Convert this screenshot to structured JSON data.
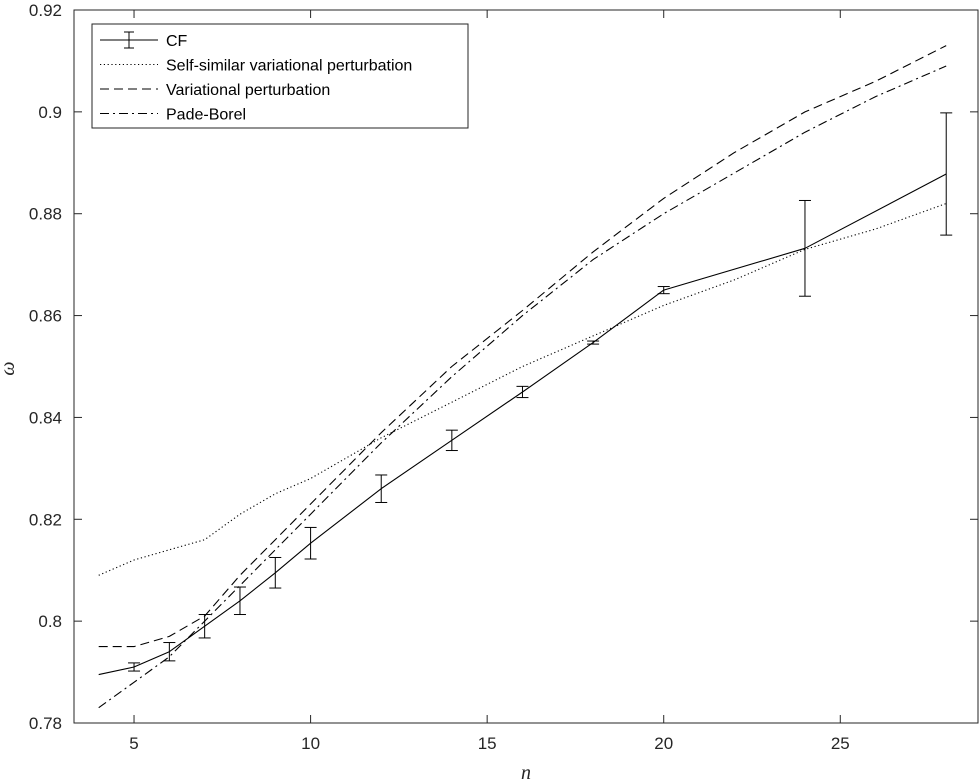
{
  "chart_data": {
    "type": "line",
    "xlabel": "n",
    "ylabel": "ω",
    "xlim": [
      3.3,
      28.9
    ],
    "ylim": [
      0.78,
      0.92
    ],
    "xticks": [
      5,
      10,
      15,
      20,
      25
    ],
    "yticks": [
      0.78,
      0.8,
      0.82,
      0.84,
      0.86,
      0.88,
      0.9,
      0.92
    ],
    "ytick_labels": [
      "0.78",
      "0.8",
      "0.82",
      "0.84",
      "0.86",
      "0.88",
      "0.9",
      "0.92"
    ],
    "grid": false,
    "legend_position": "top-left",
    "series": [
      {
        "name": "CF",
        "style": "solid",
        "color": "#000000",
        "x": [
          4,
          5,
          6,
          7,
          8,
          9,
          10,
          12,
          14,
          16,
          18,
          20,
          24,
          28
        ],
        "y": [
          0.7895,
          0.791,
          0.794,
          0.799,
          0.804,
          0.8095,
          0.8153,
          0.826,
          0.8355,
          0.845,
          0.8547,
          0.865,
          0.8732,
          0.8878
        ],
        "err": [
          0.0,
          0.0008,
          0.0018,
          0.0023,
          0.0027,
          0.003,
          0.0031,
          0.0027,
          0.002,
          0.0011,
          0.0003,
          0.0007,
          0.0094,
          0.012
        ]
      },
      {
        "name": "Self-similar variational perturbation",
        "style": "dotted",
        "color": "#000000",
        "x": [
          4,
          5,
          6,
          7,
          8,
          9,
          10,
          11,
          12,
          14,
          16,
          18,
          20,
          22,
          24,
          26,
          28
        ],
        "y": [
          0.809,
          0.812,
          0.814,
          0.816,
          0.821,
          0.825,
          0.828,
          0.832,
          0.836,
          0.843,
          0.85,
          0.856,
          0.862,
          0.867,
          0.873,
          0.877,
          0.882
        ]
      },
      {
        "name": "Variational perturbation",
        "style": "dashed",
        "color": "#000000",
        "x": [
          4,
          5,
          6,
          7,
          8,
          9,
          10,
          11,
          12,
          14,
          16,
          18,
          20,
          22,
          24,
          26,
          28
        ],
        "y": [
          0.795,
          0.795,
          0.797,
          0.801,
          0.809,
          0.816,
          0.823,
          0.83,
          0.837,
          0.85,
          0.861,
          0.8725,
          0.883,
          0.892,
          0.9,
          0.906,
          0.913
        ]
      },
      {
        "name": "Pade-Borel",
        "style": "dashdot",
        "color": "#000000",
        "x": [
          4,
          5,
          6,
          7,
          8,
          9,
          10,
          11,
          12,
          14,
          16,
          18,
          20,
          22,
          24,
          26,
          28
        ],
        "y": [
          0.783,
          0.788,
          0.793,
          0.8,
          0.807,
          0.814,
          0.821,
          0.828,
          0.835,
          0.848,
          0.86,
          0.871,
          0.88,
          0.888,
          0.896,
          0.903,
          0.909
        ]
      }
    ]
  }
}
